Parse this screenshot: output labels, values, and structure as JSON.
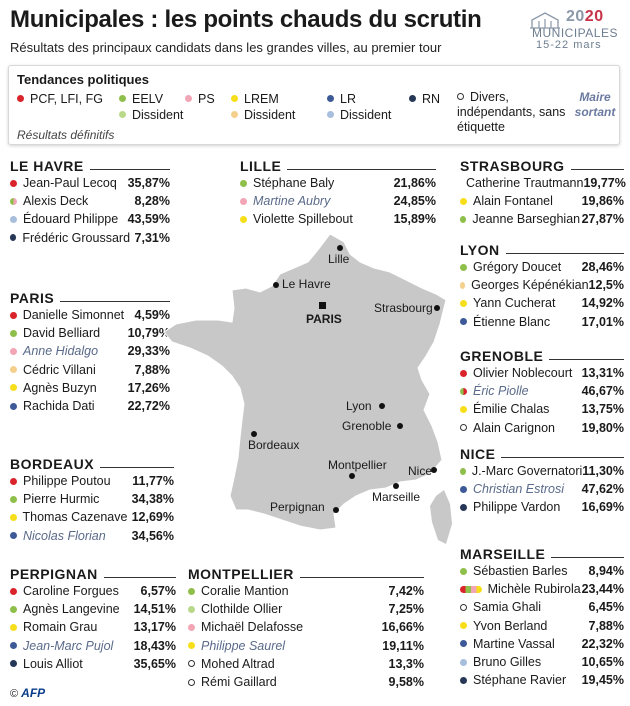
{
  "title": "Municipales : les points chauds du scrutin",
  "subtitle": "Résultats des principaux candidats dans les grandes villes, au premier tour",
  "logo": {
    "year_prefix": "20",
    "year_suffix": "20",
    "word": "MUNICIPALES",
    "dates": "15-22 mars"
  },
  "legend": {
    "title": "Tendances politiques",
    "items": [
      {
        "key": "pcf",
        "label": "PCF, LFI, FG",
        "color": "#d9242b"
      },
      {
        "key": "eelv",
        "label": "EELV",
        "color": "#8dbf4a"
      },
      {
        "key": "eelv_diss",
        "label": "Dissident",
        "color": "#b8d98a"
      },
      {
        "key": "ps",
        "label": "PS",
        "color": "#f2a5b5"
      },
      {
        "key": "lrem",
        "label": "LREM",
        "color": "#f6df1a"
      },
      {
        "key": "lrem_diss",
        "label": "Dissident",
        "color": "#f5cf8c"
      },
      {
        "key": "lr",
        "label": "LR",
        "color": "#3d5998"
      },
      {
        "key": "lr_diss",
        "label": "Dissident",
        "color": "#a7bedc"
      },
      {
        "key": "rn",
        "label": "RN",
        "color": "#253656"
      }
    ],
    "divers_label": "Divers, indépendants, sans étiquette",
    "maire_label": "Maire sortant",
    "note": "Résultats définitifs"
  },
  "cities": {
    "le_havre": {
      "name": "LE HAVRE",
      "candidates": [
        {
          "name": "Jean-Paul Lecoq",
          "pct": "35,87%",
          "party": "pcf"
        },
        {
          "name": "Alexis Deck",
          "pct": "8,28%",
          "party": "eelv_ps"
        },
        {
          "name": "Édouard Philippe",
          "pct": "43,59%",
          "party": "lr_diss"
        },
        {
          "name": "Frédéric Groussard",
          "pct": "7,31%",
          "party": "rn"
        }
      ]
    },
    "lille": {
      "name": "LILLE",
      "candidates": [
        {
          "name": "Stéphane Baly",
          "pct": "21,86%",
          "party": "eelv"
        },
        {
          "name": "Martine Aubry",
          "pct": "24,85%",
          "party": "ps",
          "incumbent": true
        },
        {
          "name": "Violette Spillebout",
          "pct": "15,89%",
          "party": "lrem"
        }
      ]
    },
    "strasbourg": {
      "name": "STRASBOURG",
      "candidates": [
        {
          "name": "Catherine Trautmann",
          "pct": "19,77%",
          "party": "ps"
        },
        {
          "name": "Alain Fontanel",
          "pct": "19,86%",
          "party": "lrem"
        },
        {
          "name": "Jeanne Barseghian",
          "pct": "27,87%",
          "party": "eelv"
        }
      ]
    },
    "lyon": {
      "name": "LYON",
      "candidates": [
        {
          "name": "Grégory Doucet",
          "pct": "28,46%",
          "party": "eelv"
        },
        {
          "name": "Georges Képénékian",
          "pct": "12,5%",
          "party": "lrem_diss"
        },
        {
          "name": "Yann Cucherat",
          "pct": "14,92%",
          "party": "lrem"
        },
        {
          "name": "Étienne Blanc",
          "pct": "17,01%",
          "party": "lr"
        }
      ]
    },
    "paris": {
      "name": "PARIS",
      "candidates": [
        {
          "name": "Danielle Simonnet",
          "pct": "4,59%",
          "party": "pcf"
        },
        {
          "name": "David Belliard",
          "pct": "10,79%",
          "party": "eelv"
        },
        {
          "name": "Anne Hidalgo",
          "pct": "29,33%",
          "party": "ps",
          "incumbent": true
        },
        {
          "name": "Cédric Villani",
          "pct": "7,88%",
          "party": "lrem_diss"
        },
        {
          "name": "Agnès Buzyn",
          "pct": "17,26%",
          "party": "lrem"
        },
        {
          "name": "Rachida Dati",
          "pct": "22,72%",
          "party": "lr"
        }
      ]
    },
    "grenoble": {
      "name": "GRENOBLE",
      "candidates": [
        {
          "name": "Olivier Noblecourt",
          "pct": "13,31%",
          "party": "pcf"
        },
        {
          "name": "Éric Piolle",
          "pct": "46,67%",
          "party": "eelv_pcf",
          "incumbent": true
        },
        {
          "name": "Émilie Chalas",
          "pct": "13,75%",
          "party": "lrem"
        },
        {
          "name": "Alain Carignon",
          "pct": "19,80%",
          "party": "divers"
        }
      ]
    },
    "nice": {
      "name": "NICE",
      "candidates": [
        {
          "name": "J.-Marc Governatori",
          "pct": "11,30%",
          "party": "eelv"
        },
        {
          "name": "Christian Estrosi",
          "pct": "47,62%",
          "party": "lr",
          "incumbent": true
        },
        {
          "name": "Philippe Vardon",
          "pct": "16,69%",
          "party": "rn"
        }
      ]
    },
    "bordeaux": {
      "name": "BORDEAUX",
      "candidates": [
        {
          "name": "Philippe Poutou",
          "pct": "11,77%",
          "party": "pcf"
        },
        {
          "name": "Pierre Hurmic",
          "pct": "34,38%",
          "party": "eelv"
        },
        {
          "name": "Thomas Cazenave",
          "pct": "12,69%",
          "party": "lrem"
        },
        {
          "name": "Nicolas Florian",
          "pct": "34,56%",
          "party": "lr",
          "incumbent": true
        }
      ]
    },
    "marseille": {
      "name": "MARSEILLE",
      "candidates": [
        {
          "name": "Sébastien Barles",
          "pct": "8,94%",
          "party": "eelv"
        },
        {
          "name": "Michèle Rubirola",
          "pct": "23,44%",
          "party": "multi"
        },
        {
          "name": "Samia Ghali",
          "pct": "6,45%",
          "party": "divers"
        },
        {
          "name": "Yvon Berland",
          "pct": "7,88%",
          "party": "lrem"
        },
        {
          "name": "Martine Vassal",
          "pct": "22,32%",
          "party": "lr"
        },
        {
          "name": "Bruno Gilles",
          "pct": "10,65%",
          "party": "lr_diss"
        },
        {
          "name": "Stéphane Ravier",
          "pct": "19,45%",
          "party": "rn"
        }
      ]
    },
    "perpignan": {
      "name": "PERPIGNAN",
      "candidates": [
        {
          "name": "Caroline Forgues",
          "pct": "6,57%",
          "party": "pcf"
        },
        {
          "name": "Agnès Langevine",
          "pct": "14,51%",
          "party": "eelv"
        },
        {
          "name": "Romain Grau",
          "pct": "13,17%",
          "party": "lrem"
        },
        {
          "name": "Jean-Marc Pujol",
          "pct": "18,43%",
          "party": "lr",
          "incumbent": true
        },
        {
          "name": "Louis Alliot",
          "pct": "35,65%",
          "party": "rn"
        }
      ]
    },
    "montpellier": {
      "name": "MONTPELLIER",
      "candidates": [
        {
          "name": "Coralie Mantion",
          "pct": "7,42%",
          "party": "eelv"
        },
        {
          "name": "Clothilde Ollier",
          "pct": "7,25%",
          "party": "eelv_diss"
        },
        {
          "name": "Michaël Delafosse",
          "pct": "16,66%",
          "party": "ps"
        },
        {
          "name": "Philippe Saurel",
          "pct": "19,11%",
          "party": "lrem",
          "incumbent": true
        },
        {
          "name": "Mohed Altrad",
          "pct": "13,3%",
          "party": "divers"
        },
        {
          "name": "Rémi Gaillard",
          "pct": "9,58%",
          "party": "divers"
        }
      ]
    }
  },
  "map_labels": {
    "lille": "Lille",
    "le_havre": "Le Havre",
    "paris": "PARIS",
    "strasbourg": "Strasbourg",
    "lyon": "Lyon",
    "grenoble": "Grenoble",
    "bordeaux": "Bordeaux",
    "montpellier": "Montpellier",
    "nice": "Nice",
    "marseille": "Marseille",
    "perpignan": "Perpignan"
  },
  "copyright": {
    "symbol": "©",
    "brand": "AFP"
  }
}
